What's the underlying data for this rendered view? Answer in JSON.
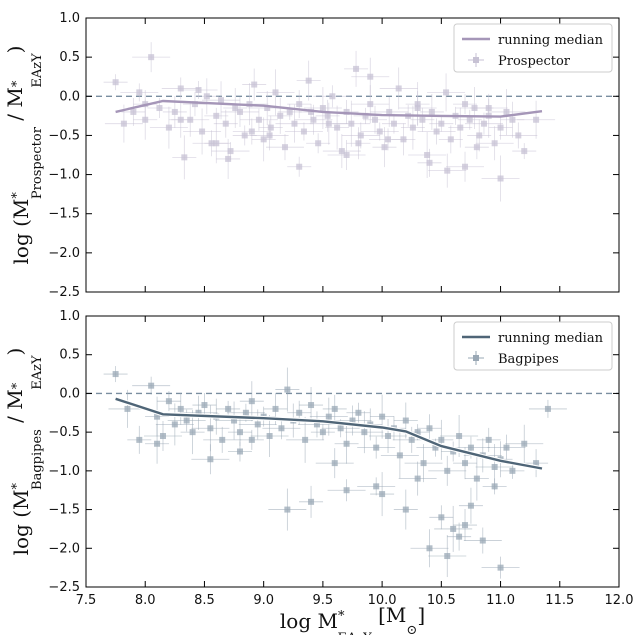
{
  "chart_data": [
    {
      "type": "scatter",
      "panel": "top",
      "xlim": [
        7.5,
        12.0
      ],
      "ylim": [
        -2.5,
        1.0
      ],
      "yticks": [
        -2.5,
        -2.0,
        -1.5,
        -1.0,
        -0.5,
        0.0,
        0.5,
        1.0
      ],
      "ytick_labels": [
        "−2.5",
        "−2.0",
        "−1.5",
        "−1.0",
        "−0.5",
        "0.0",
        "0.5",
        "1.0"
      ],
      "ylabel_main": "log (M",
      "ylabel_sup": "*",
      "ylabel_sub": "Prospector",
      "ylabel_mid": " / M",
      "ylabel_sup2": "*",
      "ylabel_sub2": "EAzY",
      "ylabel_tail": ")",
      "reference_line_y": 0.0,
      "legend_position": "top-right",
      "colors": {
        "median": "#a596b8",
        "points": "#c7c2d4",
        "reference": "#7a8ea0"
      },
      "series": [
        {
          "name": "running median",
          "kind": "line",
          "x": [
            7.75,
            8.15,
            9.0,
            9.5,
            10.0,
            10.5,
            11.0,
            11.35
          ],
          "y": [
            -0.2,
            -0.06,
            -0.12,
            -0.2,
            -0.24,
            -0.25,
            -0.26,
            -0.19
          ]
        },
        {
          "name": "Prospector",
          "kind": "points",
          "x": [
            7.75,
            7.82,
            7.9,
            7.95,
            8.0,
            8.05,
            8.12,
            8.2,
            8.25,
            8.3,
            8.33,
            8.38,
            8.42,
            8.48,
            8.52,
            8.56,
            8.6,
            8.64,
            8.68,
            8.72,
            8.76,
            8.8,
            8.84,
            8.88,
            8.92,
            8.96,
            9.0,
            9.03,
            9.06,
            9.1,
            9.14,
            9.18,
            9.22,
            9.26,
            9.3,
            9.34,
            9.38,
            9.42,
            9.46,
            9.5,
            9.54,
            9.58,
            9.62,
            9.66,
            9.7,
            9.74,
            9.78,
            9.82,
            9.86,
            9.9,
            9.94,
            9.98,
            10.02,
            10.06,
            10.1,
            10.14,
            10.18,
            10.22,
            10.26,
            10.3,
            10.34,
            10.38,
            10.42,
            10.46,
            10.5,
            10.54,
            10.58,
            10.62,
            10.66,
            10.7,
            10.74,
            10.78,
            10.82,
            10.86,
            10.9,
            10.95,
            11.0,
            11.05,
            11.1,
            11.15,
            11.2,
            11.3,
            8.0,
            8.45,
            8.7,
            9.05,
            9.3,
            9.55,
            9.8,
            10.05,
            10.3,
            10.55,
            10.8,
            11.0,
            8.3,
            8.9,
            9.4,
            9.9,
            10.4,
            10.9,
            8.6,
            9.7,
            10.7
          ],
          "y": [
            0.18,
            -0.35,
            -0.2,
            0.05,
            -0.3,
            0.5,
            -0.15,
            -0.4,
            -0.2,
            0.1,
            -0.78,
            -0.3,
            -0.1,
            -0.45,
            0.0,
            -0.6,
            -0.25,
            -0.05,
            -0.35,
            -0.7,
            -0.15,
            -0.2,
            -0.5,
            -0.1,
            0.15,
            -0.3,
            -0.55,
            -0.15,
            -0.4,
            0.05,
            -0.25,
            -0.65,
            -0.2,
            -0.35,
            -0.1,
            -0.45,
            0.2,
            -0.3,
            -0.6,
            -0.15,
            -0.25,
            0.0,
            -0.4,
            -0.7,
            -0.2,
            -0.35,
            0.35,
            -0.5,
            -0.25,
            -0.1,
            -0.3,
            -0.45,
            -0.65,
            -0.2,
            -0.35,
            0.1,
            -0.55,
            -0.25,
            -0.4,
            -0.15,
            -0.3,
            -0.75,
            -0.2,
            -0.45,
            -0.35,
            0.05,
            -0.55,
            -0.25,
            -0.4,
            -0.9,
            -0.3,
            -0.15,
            -0.5,
            -0.35,
            -0.25,
            -0.6,
            -0.4,
            -0.2,
            -0.3,
            -0.5,
            -0.7,
            -0.3,
            -0.1,
            0.08,
            -0.8,
            -0.5,
            -0.9,
            -0.35,
            -0.6,
            -0.55,
            -0.1,
            -0.95,
            -0.65,
            -1.05,
            -0.3,
            -0.45,
            -0.2,
            0.25,
            -0.85,
            -0.15,
            -0.6,
            -0.75,
            -0.1
          ]
        }
      ]
    },
    {
      "type": "scatter",
      "panel": "bottom",
      "xlim": [
        7.5,
        12.0
      ],
      "ylim": [
        -2.5,
        1.0
      ],
      "xticks": [
        7.5,
        8.0,
        8.5,
        9.0,
        9.5,
        10.0,
        10.5,
        11.0,
        11.5,
        12.0
      ],
      "xtick_labels": [
        "7.5",
        "8.0",
        "8.5",
        "9.0",
        "9.5",
        "10.0",
        "10.5",
        "11.0",
        "11.5",
        "12.0"
      ],
      "yticks": [
        -2.5,
        -2.0,
        -1.5,
        -1.0,
        -0.5,
        0.0,
        0.5,
        1.0
      ],
      "ytick_labels": [
        "−2.5",
        "−2.0",
        "−1.5",
        "−1.0",
        "−0.5",
        "0.0",
        "0.5",
        "1.0"
      ],
      "xlabel_main": "log M",
      "xlabel_sup": "*",
      "xlabel_sub": "EAzY",
      "xlabel_tail": " [M",
      "xlabel_sub2": "⊙",
      "xlabel_end": "]",
      "ylabel_main": "log (M",
      "ylabel_sup": "*",
      "ylabel_sub": "Bagpipes",
      "ylabel_mid": " / M",
      "ylabel_sup2": "*",
      "ylabel_sub2": "EAzY",
      "ylabel_tail": ")",
      "reference_line_y": 0.0,
      "legend_position": "top-right",
      "colors": {
        "median": "#4f6577",
        "points": "#9aa8b5",
        "reference": "#7a8ea0"
      },
      "series": [
        {
          "name": "running median",
          "kind": "line",
          "x": [
            7.75,
            8.15,
            9.0,
            9.5,
            10.0,
            10.2,
            10.5,
            11.0,
            11.35
          ],
          "y": [
            -0.07,
            -0.27,
            -0.32,
            -0.36,
            -0.44,
            -0.49,
            -0.68,
            -0.87,
            -0.97
          ]
        },
        {
          "name": "Bagpipes",
          "kind": "points",
          "x": [
            7.75,
            7.85,
            7.95,
            8.05,
            8.1,
            8.15,
            8.2,
            8.25,
            8.3,
            8.35,
            8.4,
            8.45,
            8.5,
            8.55,
            8.6,
            8.65,
            8.7,
            8.75,
            8.8,
            8.85,
            8.9,
            8.95,
            9.0,
            9.05,
            9.1,
            9.15,
            9.2,
            9.25,
            9.3,
            9.35,
            9.4,
            9.45,
            9.5,
            9.55,
            9.6,
            9.65,
            9.7,
            9.75,
            9.8,
            9.85,
            9.9,
            9.95,
            10.0,
            10.05,
            10.1,
            10.15,
            10.2,
            10.25,
            10.3,
            10.35,
            10.4,
            10.45,
            10.5,
            10.55,
            10.6,
            10.65,
            10.7,
            10.75,
            10.8,
            10.85,
            10.9,
            10.95,
            11.0,
            11.05,
            11.1,
            11.2,
            11.3,
            11.4,
            8.1,
            8.55,
            8.9,
            9.2,
            9.4,
            9.7,
            10.0,
            10.3,
            10.5,
            10.6,
            10.75,
            10.85,
            10.95,
            10.4,
            10.65,
            9.95,
            10.2,
            9.6,
            8.8,
            10.55,
            10.7,
            11.0
          ],
          "y": [
            0.25,
            -0.2,
            -0.6,
            0.1,
            -0.3,
            -0.55,
            -0.1,
            -0.4,
            -0.2,
            -0.35,
            -0.5,
            -0.25,
            -0.15,
            -0.45,
            -0.3,
            -0.6,
            -0.2,
            -0.35,
            -0.5,
            -0.25,
            -0.1,
            -0.4,
            -0.3,
            -0.55,
            -0.2,
            -0.45,
            0.05,
            -0.35,
            -0.25,
            -0.6,
            -0.15,
            -0.4,
            -0.5,
            -0.3,
            -0.2,
            -0.45,
            -0.65,
            -0.35,
            -0.25,
            -0.5,
            -0.4,
            -0.7,
            -0.3,
            -0.55,
            -0.45,
            -0.8,
            -0.35,
            -0.6,
            -0.5,
            -0.9,
            -0.45,
            -0.7,
            -0.6,
            -1.0,
            -0.75,
            -0.55,
            -0.9,
            -0.7,
            -1.1,
            -0.8,
            -0.6,
            -0.95,
            -0.85,
            -0.7,
            -1.0,
            -0.65,
            -0.9,
            -0.2,
            -0.65,
            -0.85,
            -0.6,
            -1.5,
            -1.4,
            -1.25,
            -1.3,
            -1.1,
            -1.6,
            -1.75,
            -1.45,
            -1.9,
            -1.2,
            -2.0,
            -1.85,
            -1.2,
            -1.5,
            -0.9,
            -0.75,
            -2.1,
            -1.7,
            -2.25
          ]
        }
      ]
    }
  ]
}
